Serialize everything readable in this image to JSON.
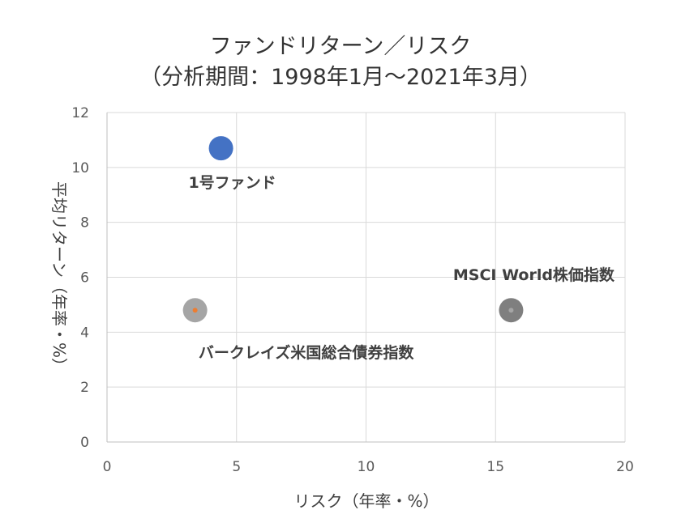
{
  "chart_data": {
    "type": "scatter",
    "title": [
      "ファンドリターン／リスク",
      "（分析期間：1998年1月～2021年3月）"
    ],
    "xlabel": "リスク（年率・%）",
    "ylabel": "平均リターン（年率・%）",
    "xlim": [
      0,
      20
    ],
    "ylim": [
      0,
      12
    ],
    "xticks": [
      0,
      5,
      10,
      15,
      20
    ],
    "yticks": [
      0,
      2,
      4,
      6,
      8,
      10,
      12
    ],
    "grid": true,
    "legend": "none",
    "points": [
      {
        "label": "1号ファンド",
        "x": 4.4,
        "y": 10.7,
        "color": "#4472C4",
        "inner_color": "#4472C4",
        "label_side": "below"
      },
      {
        "label": "バークレイズ米国総合債券指数",
        "x": 3.4,
        "y": 4.8,
        "color": "#A5A5A5",
        "inner_color": "#ED7D31",
        "label_side": "below"
      },
      {
        "label": "MSCI World株価指数",
        "x": 15.6,
        "y": 4.8,
        "color": "#7F7F7F",
        "inner_color": "#A5A5A5",
        "label_side": "above"
      }
    ]
  }
}
